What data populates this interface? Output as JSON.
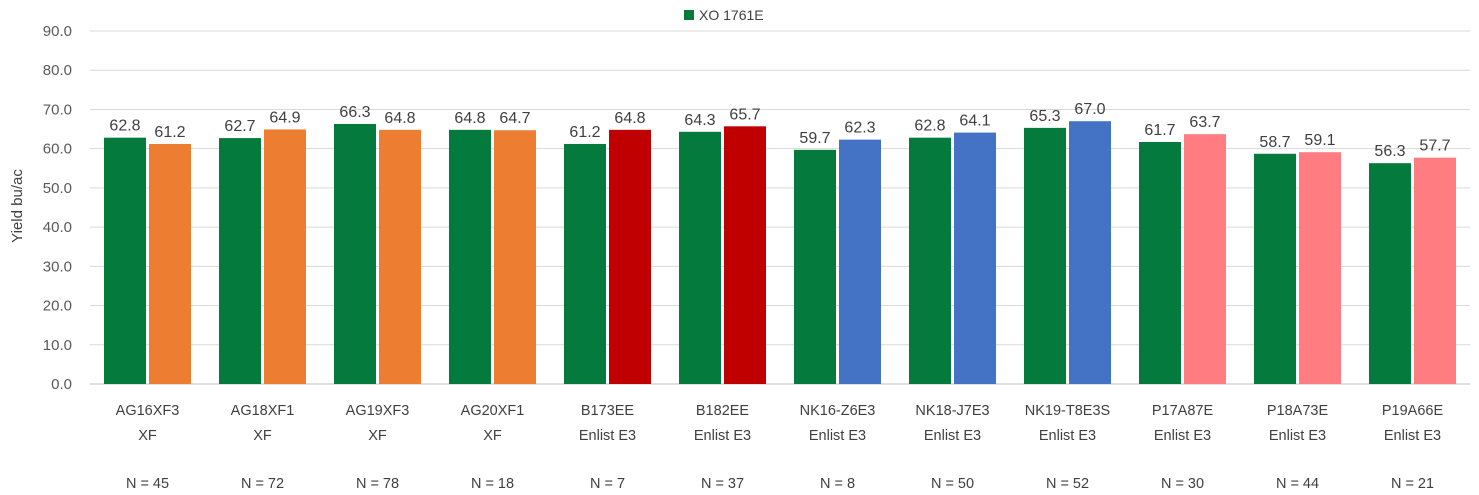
{
  "chart_data": {
    "type": "bar",
    "ylabel": "Yield bu/ac",
    "ylim": [
      0,
      90
    ],
    "ytick_step": 10,
    "ytick_labels": [
      "0.0",
      "10.0",
      "20.0",
      "30.0",
      "40.0",
      "50.0",
      "60.0",
      "70.0",
      "80.0",
      "90.0"
    ],
    "grid": true,
    "legend": {
      "position": "top-center",
      "entries": [
        {
          "name": "XO 1761E",
          "color": "#047a3c"
        }
      ]
    },
    "categories": [
      {
        "line1": "AG16XF3",
        "line2": "XF",
        "n": "N = 45"
      },
      {
        "line1": "AG18XF1",
        "line2": "XF",
        "n": "N = 72"
      },
      {
        "line1": "AG19XF3",
        "line2": "XF",
        "n": "N = 78"
      },
      {
        "line1": "AG20XF1",
        "line2": "XF",
        "n": "N = 18"
      },
      {
        "line1": "B173EE",
        "line2": "Enlist E3",
        "n": "N = 7"
      },
      {
        "line1": "B182EE",
        "line2": "Enlist E3",
        "n": "N = 37"
      },
      {
        "line1": "NK16-Z6E3",
        "line2": "Enlist E3",
        "n": "N = 8"
      },
      {
        "line1": "NK18-J7E3",
        "line2": "Enlist E3",
        "n": "N = 50"
      },
      {
        "line1": "NK19-T8E3S",
        "line2": "Enlist E3",
        "n": "N = 52"
      },
      {
        "line1": "P17A87E",
        "line2": "Enlist E3",
        "n": "N = 30"
      },
      {
        "line1": "P18A73E",
        "line2": "Enlist E3",
        "n": "N = 44"
      },
      {
        "line1": "P19A66E",
        "line2": "Enlist E3",
        "n": "N = 21"
      }
    ],
    "series": [
      {
        "name": "XO 1761E",
        "color": "#047a3c",
        "values": [
          62.8,
          62.7,
          66.3,
          64.8,
          61.2,
          64.3,
          59.7,
          62.8,
          65.3,
          61.7,
          58.7,
          56.3
        ],
        "labels": [
          "62.8",
          "62.7",
          "66.3",
          "64.8",
          "61.2",
          "64.3",
          "59.7",
          "62.8",
          "65.3",
          "61.7",
          "58.7",
          "56.3"
        ]
      },
      {
        "colors": [
          "#ed7d31",
          "#ed7d31",
          "#ed7d31",
          "#ed7d31",
          "#c00000",
          "#c00000",
          "#4472c4",
          "#4472c4",
          "#4472c4",
          "#ff7c80",
          "#ff7c80",
          "#ff7c80"
        ],
        "values": [
          61.2,
          64.9,
          64.8,
          64.7,
          64.8,
          65.7,
          62.3,
          64.1,
          67.0,
          63.7,
          59.1,
          57.7
        ],
        "labels": [
          "61.2",
          "64.9",
          "64.8",
          "64.7",
          "64.8",
          "65.7",
          "62.3",
          "64.1",
          "67.0",
          "63.7",
          "59.1",
          "57.7"
        ]
      }
    ]
  }
}
